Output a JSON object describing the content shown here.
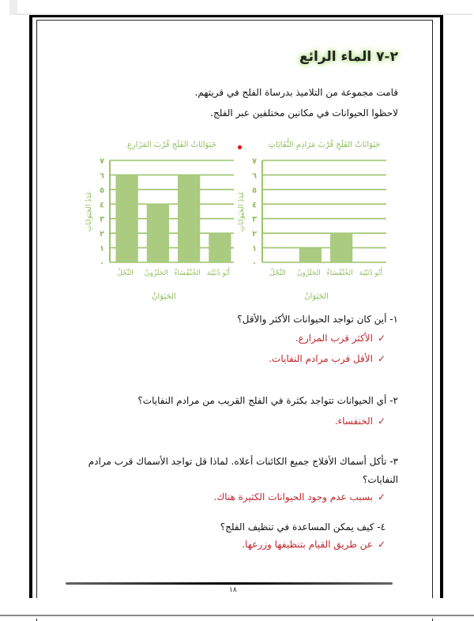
{
  "heading": "٢-٧ الماء الرائع",
  "intro": [
    "قامت مجموعة من التلاميذ بدرساة الفلج في قريتهم.",
    "لاحظوا الحيوانات في مكانين مختلفين عبر الفلج."
  ],
  "questions": [
    {
      "q": "١- أين كان تواجد الحيوانات الأكثر والأقل؟",
      "answers": [
        "الأكثر قرب المزارع.",
        "الأقل قرب مرادم النفايات."
      ]
    },
    {
      "q": "٢- أي الحيوانات تتواجد بكثرة في الفلج القريب من مرادم النفايات؟",
      "answers": [
        "الخنفساء."
      ]
    },
    {
      "q": "٣- تأكل أسماك الأفلاج جميع الكائنات أعلاه. لماذا قل تواجد الأسماك قرب مرادم",
      "q2": "النفايات؟",
      "answers": [
        "بسبب عدم وجود الحيوانات الكثيرة هناك."
      ]
    },
    {
      "q": "٤- كيف يمكن المساعدة في تنظيف الفلج؟",
      "answers": [
        "عن طريق القيام بتنظيفها وزرعها."
      ]
    }
  ],
  "check_icon": "✓",
  "page_number": "١٨",
  "colors": {
    "bar": "#aacb80",
    "grid": "#9cc46a",
    "chart_text": "#8fbf5f",
    "answer": "#c0272d"
  },
  "chart_data": [
    {
      "type": "bar",
      "title": "حَيَوَانَاتُ الفَلَجِ قُرْبَ المَزَارِعِ",
      "xlabel": "الحَيَوَانُ",
      "ylabel": "عَدَدُ الحَيَوَانَاتِ",
      "categories": [
        "النَّحْلُ",
        "الحَلَزُونُ",
        "الخُنْفُسَاءُ",
        "أَبُو دُنَيْبَة"
      ],
      "values": [
        6,
        4,
        6,
        2
      ],
      "ylim": [
        0,
        7
      ],
      "yticks": [
        "٠",
        "١",
        "٢",
        "٣",
        "٤",
        "٥",
        "٦",
        "٧"
      ],
      "grid": true
    },
    {
      "type": "bar",
      "title": "حَيَوَانَاتُ الفَلَجِ قُرْبَ مَرَادِمِ النُّفَايَاتِ",
      "xlabel": "الحَيَوَانُ",
      "ylabel": "عَدَدُ الحَيَوَانَاتِ",
      "categories": [
        "النَّحْلُ",
        "الحَلَزُونُ",
        "الخُنْفُسَاءُ",
        "أَبُو دُنَيْبَة"
      ],
      "values": [
        0,
        1,
        2,
        0
      ],
      "ylim": [
        0,
        7
      ],
      "yticks": [
        "٠",
        "١",
        "٢",
        "٣",
        "٤",
        "٥",
        "٦",
        "٧"
      ],
      "grid": true
    }
  ]
}
